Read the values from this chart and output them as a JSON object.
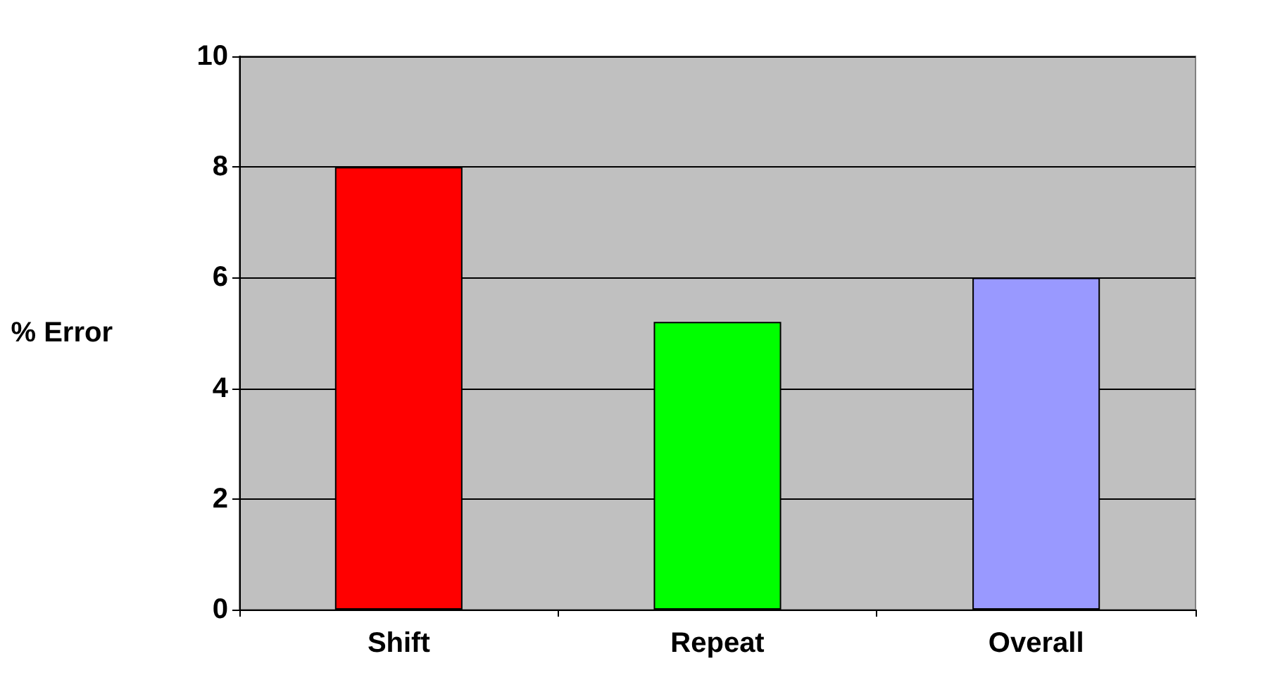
{
  "chart_data": {
    "type": "bar",
    "ylabel": "% Error",
    "categories": [
      "Shift",
      "Repeat",
      "Overall"
    ],
    "values": [
      8.0,
      5.2,
      6.0
    ],
    "colors": [
      "#ff0000",
      "#00ff00",
      "#9999ff"
    ],
    "ylim": [
      0,
      10
    ],
    "yticks": [
      0,
      2,
      4,
      6,
      8,
      10
    ],
    "grid": "y"
  }
}
